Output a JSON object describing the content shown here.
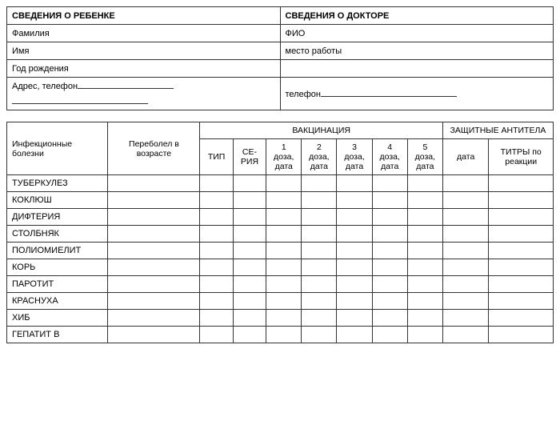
{
  "info": {
    "child_header": "СВЕДЕНИЯ О РЕБЕНКЕ",
    "doctor_header": "СВЕДЕНИЯ О ДОКТОРЕ",
    "surname": "Фамилия",
    "fio": "ФИО",
    "name": "Имя",
    "workplace": "место работы",
    "birth_year": "Год рождения",
    "address_phone": "Адрес, телефон",
    "phone": "телефон"
  },
  "vac": {
    "col_diseases": "Инфекционные болезни",
    "col_age": "Переболел в возрасте",
    "group_vaccination": "ВАКЦИНАЦИЯ",
    "group_antibodies": "ЗАЩИТНЫЕ АНТИТЕЛА",
    "col_type": "ТИП",
    "col_series": "СЕ-РИЯ",
    "col_dose1": "1 доза, дата",
    "col_dose2": "2 доза, дата",
    "col_dose3": "3 доза, дата",
    "col_dose4": "4 доза, дата",
    "col_dose5": "5 доза, дата",
    "col_ab_date": "дата",
    "col_ab_titre": "ТИТРЫ по реакции",
    "rows": [
      "ТУБЕРКУЛЕЗ",
      "КОКЛЮШ",
      "ДИФТЕРИЯ",
      "СТОЛБНЯК",
      "ПОЛИОМИЕЛИТ",
      "КОРЬ",
      "ПАРОТИТ",
      "КРАСНУХА",
      "ХИБ",
      "ГЕПАТИТ В"
    ]
  },
  "colors": {
    "border": "#333333",
    "background": "#ffffff",
    "text": "#000000"
  }
}
